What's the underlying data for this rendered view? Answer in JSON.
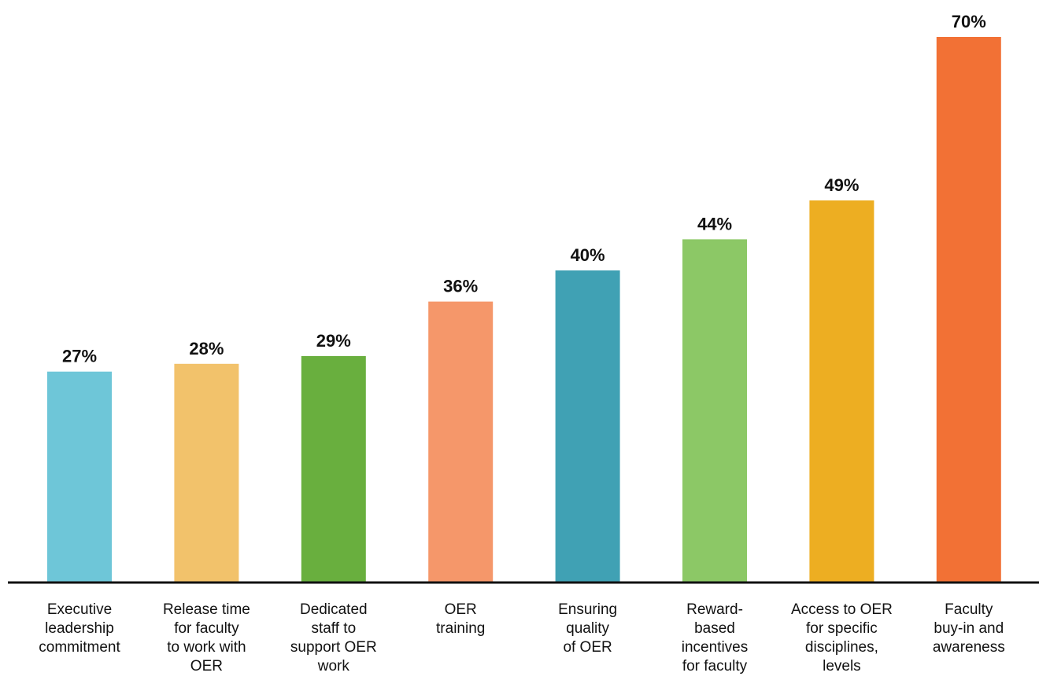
{
  "chart_data": {
    "type": "bar",
    "categories": [
      [
        "Executive",
        "leadership",
        "commitment"
      ],
      [
        "Release time",
        "for faculty",
        "to work with",
        "OER"
      ],
      [
        "Dedicated",
        "staff to",
        "support OER",
        "work"
      ],
      [
        "OER",
        "training"
      ],
      [
        "Ensuring",
        "quality",
        "of OER"
      ],
      [
        "Reward-",
        "based",
        "incentives",
        "for faculty"
      ],
      [
        "Access to OER",
        "for specific",
        "disciplines,",
        "levels"
      ],
      [
        "Faculty",
        "buy-in and",
        "awareness"
      ]
    ],
    "values": [
      27,
      28,
      29,
      36,
      40,
      44,
      49,
      70
    ],
    "value_labels": [
      "27%",
      "28%",
      "29%",
      "36%",
      "40%",
      "44%",
      "49%",
      "70%"
    ],
    "colors": [
      "#6EC6D8",
      "#F2C26B",
      "#69AF3E",
      "#F5976A",
      "#40A1B4",
      "#8CC866",
      "#EDAE22",
      "#F27135"
    ],
    "ylim": [
      0,
      70
    ],
    "grid": false,
    "legend": "none",
    "baseline_color": "#111111"
  }
}
